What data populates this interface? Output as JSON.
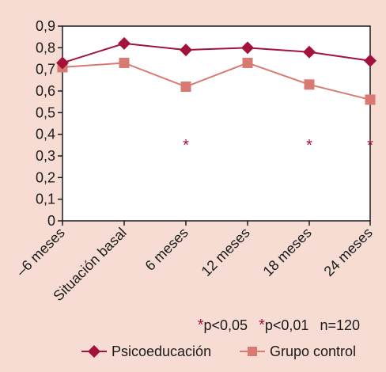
{
  "chart_data": {
    "type": "line",
    "categories": [
      "–6 meses",
      "Situación basal",
      "6 meses",
      "12 meses",
      "18 meses",
      "24 meses"
    ],
    "ylim": [
      0,
      0.9
    ],
    "yticks": [
      "0",
      "0,1",
      "0,2",
      "0,3",
      "0,4",
      "0,5",
      "0,6",
      "0,7",
      "0,8",
      "0,9"
    ],
    "grid": false,
    "series": [
      {
        "name": "Psicoeducación",
        "values": [
          0.73,
          0.82,
          0.79,
          0.8,
          0.78,
          0.74
        ],
        "color": "#a3123a",
        "marker": "diamond"
      },
      {
        "name": "Grupo control",
        "values": [
          0.71,
          0.73,
          0.62,
          0.73,
          0.63,
          0.56
        ],
        "color": "#d97a72",
        "marker": "square"
      }
    ],
    "significance_marks": [
      {
        "category": "6 meses",
        "symbol": "*",
        "y": 0.37
      },
      {
        "category": "18 meses",
        "symbol": "*",
        "y": 0.37
      },
      {
        "category": "24 meses",
        "symbol": "*",
        "y": 0.37
      }
    ],
    "annotations": {
      "mark1_symbol": "*",
      "mark1_text": "p<0,05",
      "mark2_symbol": "*",
      "mark2_text": "p<0,01",
      "n_text": "n=120"
    },
    "legend_position": "bottom-right"
  }
}
